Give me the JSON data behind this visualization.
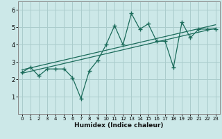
{
  "title": "",
  "xlabel": "Humidex (Indice chaleur)",
  "bg_color": "#cce8e8",
  "line_color": "#1a6b5a",
  "grid_color": "#aacccc",
  "xlim": [
    -0.5,
    23.5
  ],
  "ylim": [
    0.0,
    6.5
  ],
  "xticks": [
    0,
    1,
    2,
    3,
    4,
    5,
    6,
    7,
    8,
    9,
    10,
    11,
    12,
    13,
    14,
    15,
    16,
    17,
    18,
    19,
    20,
    21,
    22,
    23
  ],
  "yticks": [
    1,
    2,
    3,
    4,
    5,
    6
  ],
  "data_x": [
    0,
    1,
    2,
    3,
    4,
    5,
    6,
    7,
    8,
    9,
    10,
    11,
    12,
    13,
    14,
    15,
    16,
    17,
    18,
    19,
    20,
    21,
    22,
    23
  ],
  "data_y": [
    2.4,
    2.7,
    2.2,
    2.6,
    2.6,
    2.6,
    2.1,
    0.9,
    2.5,
    3.1,
    4.0,
    5.1,
    4.0,
    5.8,
    4.9,
    5.2,
    4.2,
    4.2,
    2.7,
    5.3,
    4.4,
    4.9,
    4.9,
    4.9
  ],
  "trend1_x": [
    0,
    23
  ],
  "trend1_y": [
    2.35,
    4.95
  ],
  "trend2_x": [
    0,
    23
  ],
  "trend2_y": [
    2.55,
    5.15
  ],
  "spine_color": "#888888"
}
